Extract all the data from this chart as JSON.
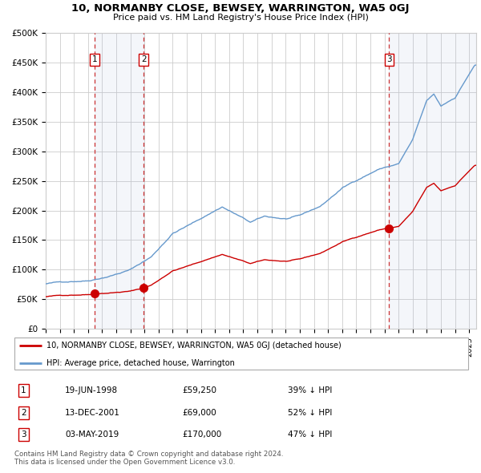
{
  "title": "10, NORMANBY CLOSE, BEWSEY, WARRINGTON, WA5 0GJ",
  "subtitle": "Price paid vs. HM Land Registry's House Price Index (HPI)",
  "xlim_start": 1995.0,
  "xlim_end": 2025.5,
  "ylim_min": 0,
  "ylim_max": 500000,
  "yticks": [
    0,
    50000,
    100000,
    150000,
    200000,
    250000,
    300000,
    350000,
    400000,
    450000,
    500000
  ],
  "ytick_labels": [
    "£0",
    "£50K",
    "£100K",
    "£150K",
    "£200K",
    "£250K",
    "£300K",
    "£350K",
    "£400K",
    "£450K",
    "£500K"
  ],
  "sale_dates": [
    1998.464,
    2001.951,
    2019.336
  ],
  "sale_prices": [
    59250,
    69000,
    170000
  ],
  "sale_labels": [
    "1",
    "2",
    "3"
  ],
  "vline_color": "#cc3333",
  "vline_shade_pairs": [
    [
      1998.464,
      2001.951
    ]
  ],
  "legend_house_label": "10, NORMANBY CLOSE, BEWSEY, WARRINGTON, WA5 0GJ (detached house)",
  "legend_hpi_label": "HPI: Average price, detached house, Warrington",
  "table_rows": [
    [
      "1",
      "19-JUN-1998",
      "£59,250",
      "39% ↓ HPI"
    ],
    [
      "2",
      "13-DEC-2001",
      "£69,000",
      "52% ↓ HPI"
    ],
    [
      "3",
      "03-MAY-2019",
      "£170,000",
      "47% ↓ HPI"
    ]
  ],
  "footnote": "Contains HM Land Registry data © Crown copyright and database right 2024.\nThis data is licensed under the Open Government Licence v3.0.",
  "house_line_color": "#cc0000",
  "hpi_line_color": "#6699cc"
}
